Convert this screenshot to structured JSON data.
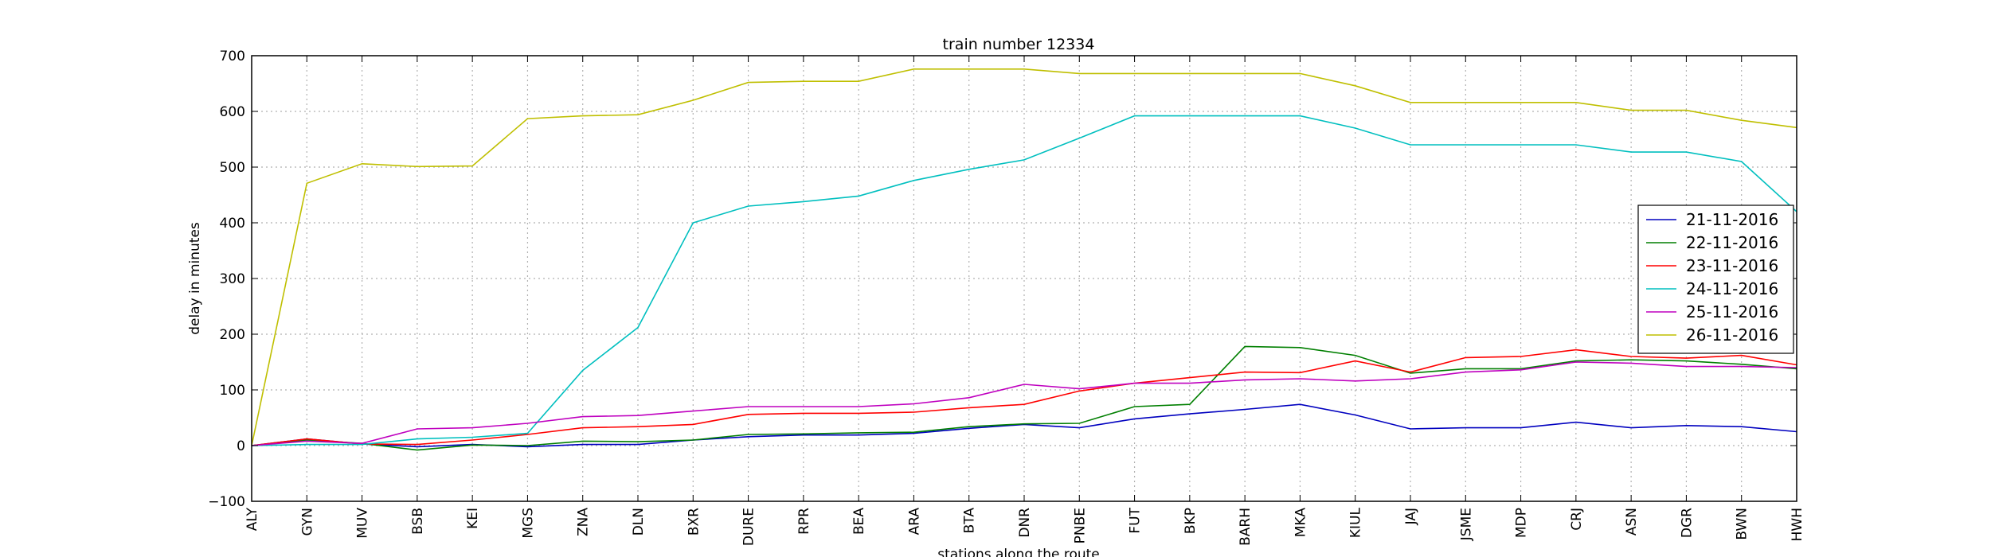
{
  "chart_data": {
    "type": "line",
    "title": "train number 12334",
    "xlabel": "stations along the route",
    "ylabel": "delay in minutes",
    "ylim": [
      -100,
      700
    ],
    "yticks": [
      -100,
      0,
      100,
      200,
      300,
      400,
      500,
      600,
      700
    ],
    "ytick_labels": [
      "−100",
      "0",
      "100",
      "200",
      "300",
      "400",
      "500",
      "600",
      "700"
    ],
    "grid": true,
    "legend_position": "right",
    "categories": [
      "ALY",
      "GYN",
      "MUV",
      "BSB",
      "KEI",
      "MGS",
      "ZNA",
      "DLN",
      "BXR",
      "DURE",
      "RPR",
      "BEA",
      "ARA",
      "BTA",
      "DNR",
      "PNBE",
      "FUT",
      "BKP",
      "BARH",
      "MKA",
      "KIUL",
      "JAJ",
      "JSME",
      "MDP",
      "CRJ",
      "ASN",
      "DGR",
      "BWN",
      "HWH"
    ],
    "series": [
      {
        "name": "21-11-2016",
        "color": "#0000bf",
        "values": [
          0,
          12,
          3,
          -2,
          2,
          -2,
          2,
          2,
          10,
          16,
          19,
          19,
          22,
          31,
          38,
          32,
          48,
          57,
          65,
          74,
          55,
          30,
          32,
          32,
          42,
          32,
          36,
          34,
          25
        ]
      },
      {
        "name": "22-11-2016",
        "color": "#007f00",
        "values": [
          0,
          10,
          4,
          -8,
          1,
          0,
          8,
          7,
          10,
          20,
          21,
          23,
          24,
          34,
          39,
          40,
          70,
          74,
          178,
          176,
          162,
          130,
          138,
          138,
          152,
          154,
          152,
          146,
          138
        ]
      },
      {
        "name": "23-11-2016",
        "color": "#ff0000",
        "values": [
          0,
          12,
          3,
          2,
          10,
          20,
          32,
          34,
          38,
          56,
          58,
          58,
          60,
          68,
          74,
          98,
          112,
          122,
          132,
          131,
          152,
          132,
          158,
          160,
          172,
          160,
          157,
          162,
          145
        ]
      },
      {
        "name": "24-11-2016",
        "color": "#00bfbf",
        "values": [
          0,
          2,
          2,
          12,
          15,
          22,
          135,
          212,
          400,
          430,
          438,
          448,
          476,
          496,
          513,
          552,
          592,
          592,
          592,
          592,
          570,
          540,
          540,
          540,
          540,
          527,
          527,
          510,
          420
        ]
      },
      {
        "name": "25-11-2016",
        "color": "#bf00bf",
        "values": [
          0,
          8,
          4,
          30,
          32,
          40,
          52,
          54,
          62,
          70,
          70,
          70,
          75,
          86,
          110,
          102,
          112,
          112,
          118,
          120,
          116,
          120,
          132,
          136,
          150,
          148,
          142,
          142,
          140
        ]
      },
      {
        "name": "26-11-2016",
        "color": "#bfbf00",
        "values": [
          0,
          471,
          506,
          501,
          502,
          587,
          592,
          594,
          620,
          652,
          654,
          654,
          676,
          676,
          676,
          668,
          668,
          668,
          668,
          668,
          646,
          616,
          616,
          616,
          616,
          602,
          602,
          584,
          571
        ]
      }
    ]
  }
}
